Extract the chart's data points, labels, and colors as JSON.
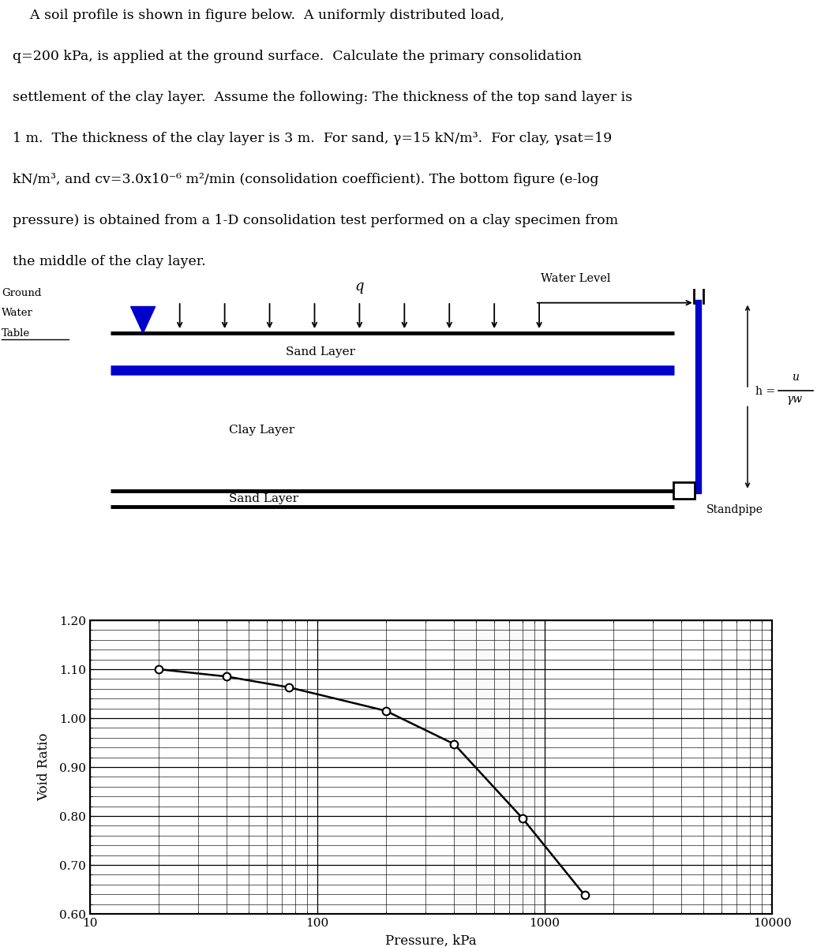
{
  "pressure_data": [
    20,
    40,
    75,
    200,
    400,
    800,
    1500
  ],
  "void_ratio_data": [
    1.1,
    1.085,
    1.063,
    1.015,
    0.947,
    0.795,
    0.638
  ],
  "xlabel": "Pressure, kPa",
  "ylabel": "Void Ratio",
  "yticks": [
    0.6,
    0.7,
    0.8,
    0.9,
    1.0,
    1.1,
    1.2
  ],
  "bg_color": "#ffffff",
  "line_color": "#000000",
  "blue_color": "#0000cd",
  "text_lines": [
    "    A soil profile is shown in figure below.  A uniformly distributed load,",
    "q=200 kPa, is applied at the ground surface.  Calculate the primary consolidation",
    "settlement of the clay layer.  Assume the following: The thickness of the top sand layer is",
    "1 m.  The thickness of the clay layer is 3 m.  For sand, γ=15 kN/m³.  For clay, γsat=19",
    "kN/m³, and cv=3.0x10⁻⁶ m²/min (consolidation coefficient). The bottom figure (e-log",
    "pressure) is obtained from a 1-D consolidation test performed on a clay specimen from",
    "the middle of the clay layer."
  ]
}
